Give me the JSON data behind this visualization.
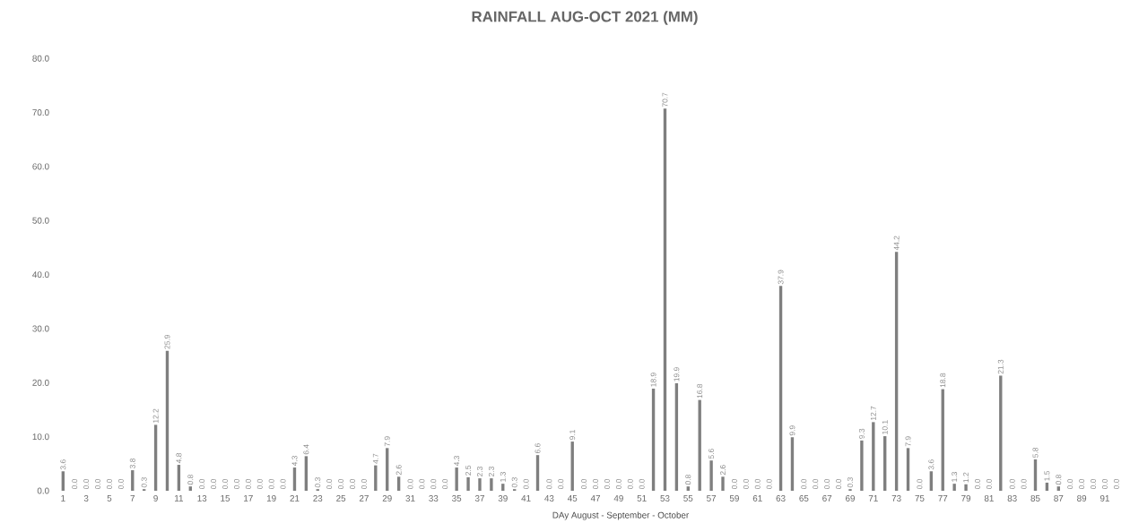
{
  "chart_data": {
    "type": "bar",
    "title": "RAINFALL AUG-OCT 2021 (MM)",
    "xlabel": "DAy August - September - October",
    "categories": [
      "1",
      null,
      "3",
      null,
      "5",
      null,
      "7",
      null,
      "9",
      null,
      "11",
      null,
      "13",
      null,
      "15",
      null,
      "17",
      null,
      "19",
      null,
      "21",
      null,
      "23",
      null,
      "25",
      null,
      "27",
      null,
      "29",
      null,
      "31",
      null,
      "33",
      null,
      "35",
      null,
      "37",
      null,
      "39",
      null,
      "41",
      null,
      "43",
      null,
      "45",
      null,
      "47",
      null,
      "49",
      null,
      "51",
      null,
      "53",
      null,
      "55",
      null,
      "57",
      null,
      "59",
      null,
      "61",
      null,
      "63",
      null,
      "65",
      null,
      "67",
      null,
      "69",
      null,
      "71",
      null,
      "73",
      null,
      "75",
      null,
      "77",
      null,
      "79",
      null,
      "81",
      null,
      "83",
      null,
      "85",
      null,
      "87",
      null,
      "89",
      null,
      "91",
      null
    ],
    "values": [
      3.6,
      0,
      0,
      0,
      0,
      0,
      3.8,
      0.3,
      12.2,
      25.9,
      4.8,
      0.8,
      0,
      0,
      0,
      0,
      0,
      0,
      0,
      0,
      4.3,
      6.4,
      0.3,
      0,
      0,
      0,
      0,
      4.7,
      7.9,
      2.6,
      0,
      0,
      0,
      0,
      4.3,
      2.5,
      2.3,
      2.3,
      1.3,
      0.3,
      0,
      6.6,
      0,
      0,
      9.1,
      0,
      0,
      0,
      0,
      0,
      0,
      18.9,
      70.7,
      19.9,
      0.8,
      16.8,
      5.6,
      2.6,
      0,
      0,
      0,
      0,
      37.9,
      9.9,
      0,
      0,
      0,
      0,
      0.3,
      9.3,
      12.7,
      10.1,
      44.2,
      7.9,
      0,
      3.6,
      18.8,
      1.3,
      1.2,
      0,
      0,
      21.3,
      0,
      0,
      5.8,
      1.5,
      0.8,
      0,
      0,
      0,
      0,
      0
    ],
    "value_labels": [
      "3.6",
      "0.0",
      "0.0",
      "0.0",
      "0.0",
      "0.0",
      "3.8",
      "0.3",
      "12.2",
      "25.9",
      "4.8",
      "0.8",
      "0.0",
      "0.0",
      "0.0",
      "0.0",
      "0.0",
      "0.0",
      "0.0",
      "0.0",
      "4.3",
      "6.4",
      "0.3",
      "0.0",
      "0.0",
      "0.0",
      "0.0",
      "4.7",
      "7.9",
      "2.6",
      "0.0",
      "0.0",
      "0.0",
      "0.0",
      "4.3",
      "2.5",
      "2.3",
      "2.3",
      "1.3",
      "0.3",
      "0.0",
      "6.6",
      "0.0",
      "0.0",
      "9.1",
      "0.0",
      "0.0",
      "0.0",
      "0.0",
      "0.0",
      "0.0",
      "18.9",
      "70.7",
      "19.9",
      "0.8",
      "16.8",
      "5.6",
      "2.6",
      "0.0",
      "0.0",
      "0.0",
      "0.0",
      "37.9",
      "9.9",
      "0.0",
      "0.0",
      "0.0",
      "0.0",
      "0.3",
      "9.3",
      "12.7",
      "10.1",
      "44.2",
      "7.9",
      "0.0",
      "3.6",
      "18.8",
      "1.3",
      "1.2",
      "0.0",
      "0.0",
      "21.3",
      "0.0",
      "0.0",
      "5.8",
      "1.5",
      "0.8",
      "0.0",
      "0.0",
      "0.0",
      "0.0",
      "0.0"
    ],
    "color": "#7f7f7f",
    "ylim": [
      0,
      80
    ],
    "yticks": [
      {
        "value": 0,
        "label": "0.0"
      },
      {
        "value": 10,
        "label": "10.0"
      },
      {
        "value": 20,
        "label": "20.0"
      },
      {
        "value": 30,
        "label": "30.0"
      },
      {
        "value": 40,
        "label": "40.0"
      },
      {
        "value": 50,
        "label": "50.0"
      },
      {
        "value": 60,
        "label": "60.0"
      },
      {
        "value": 70,
        "label": "70.0"
      },
      {
        "value": 80,
        "label": "80.0"
      }
    ]
  }
}
